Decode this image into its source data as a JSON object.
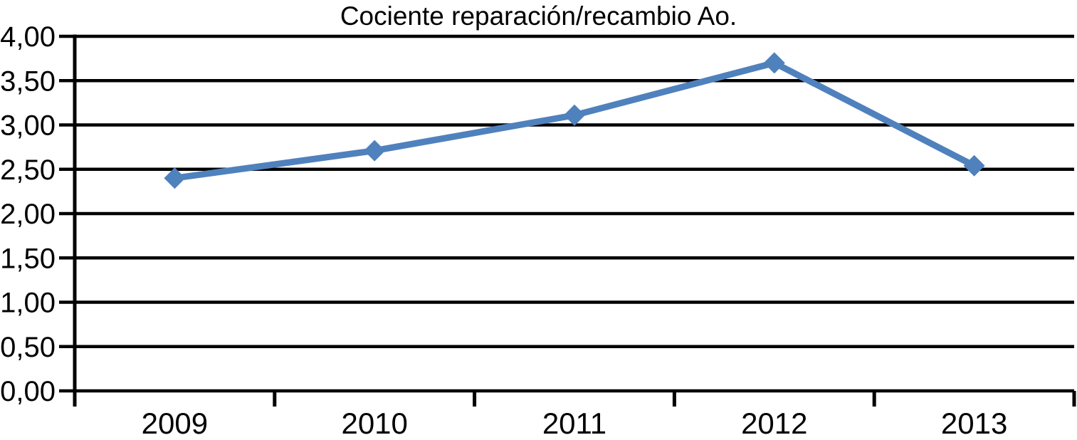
{
  "chart_data": {
    "type": "line",
    "title": "Cociente reparación/recambio Ao.",
    "categories": [
      "2009",
      "2010",
      "2011",
      "2012",
      "2013"
    ],
    "series": [
      {
        "name": "Cociente reparación/recambio Ao.",
        "values": [
          2.4,
          2.71,
          3.11,
          3.7,
          2.54
        ]
      }
    ],
    "xlabel": "",
    "ylabel": "",
    "ylim": [
      0,
      4
    ],
    "ytick_step": 0.5,
    "ytick_labels": [
      "0,00",
      "0,50",
      "1,00",
      "1,50",
      "2,00",
      "2,50",
      "3,00",
      "3,50",
      "4,00"
    ],
    "grid": "horizontal",
    "legend": "none",
    "marker": "diamond",
    "line_color": "#4F81BD",
    "axis_color": "#000000",
    "background": "#FFFFFF"
  }
}
